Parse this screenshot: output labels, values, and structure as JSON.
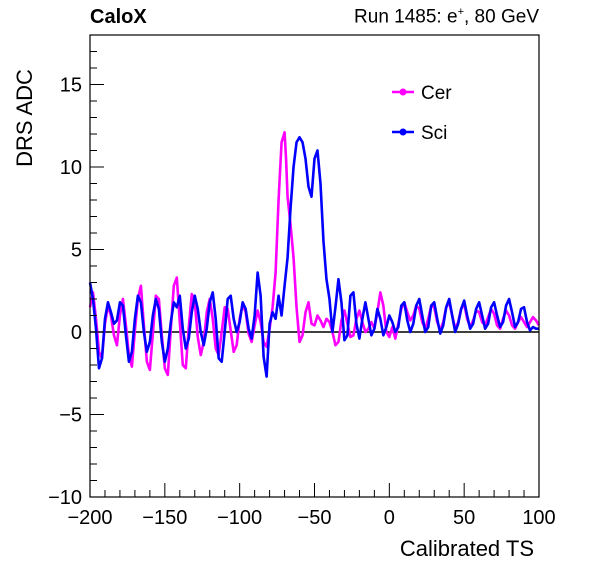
{
  "header": {
    "experiment": "CaloX",
    "run_prefix": "Run 1485: e",
    "run_sup": "+",
    "run_suffix": ", 80 GeV"
  },
  "chart_data": {
    "type": "line",
    "xlabel": "Calibrated TS",
    "ylabel": "DRS ADC",
    "xlim": [
      -200,
      100
    ],
    "ylim": [
      -10,
      18
    ],
    "xticks": [
      -200,
      -150,
      -100,
      -50,
      0,
      50,
      100
    ],
    "yticks": [
      -10,
      -5,
      0,
      5,
      10,
      15
    ],
    "xtick_labels": [
      "−200",
      "−150",
      "−100",
      "−50",
      "0",
      "50",
      "100"
    ],
    "ytick_labels": [
      "−10",
      "−5",
      "0",
      "5",
      "10",
      "15"
    ],
    "zero_line": true,
    "legend_position": "top-right",
    "series": [
      {
        "name": "Cer",
        "color": "#ff00ff",
        "points": [
          [
            -200,
            1.5
          ],
          [
            -198,
            2.4
          ],
          [
            -196,
            0.8
          ],
          [
            -194,
            -1.2
          ],
          [
            -192,
            -1.6
          ],
          [
            -190,
            0.5
          ],
          [
            -188,
            1.6
          ],
          [
            -186,
            1.0
          ],
          [
            -184,
            -0.2
          ],
          [
            -182,
            -0.8
          ],
          [
            -180,
            1.0
          ],
          [
            -178,
            2.0
          ],
          [
            -176,
            0.4
          ],
          [
            -174,
            -1.4
          ],
          [
            -172,
            -2.1
          ],
          [
            -170,
            0.1
          ],
          [
            -168,
            2.0
          ],
          [
            -166,
            2.8
          ],
          [
            -164,
            0.4
          ],
          [
            -162,
            -1.8
          ],
          [
            -160,
            -2.3
          ],
          [
            -158,
            -0.1
          ],
          [
            -156,
            2.2
          ],
          [
            -154,
            2.0
          ],
          [
            -152,
            -0.2
          ],
          [
            -150,
            -2.2
          ],
          [
            -148,
            -2.6
          ],
          [
            -146,
            0.2
          ],
          [
            -144,
            2.8
          ],
          [
            -142,
            3.3
          ],
          [
            -140,
            0.6
          ],
          [
            -138,
            -2.0
          ],
          [
            -136,
            -2.2
          ],
          [
            -134,
            0.3
          ],
          [
            -132,
            2.3
          ],
          [
            -130,
            1.8
          ],
          [
            -128,
            -0.3
          ],
          [
            -126,
            -1.4
          ],
          [
            -124,
            -0.6
          ],
          [
            -122,
            1.2
          ],
          [
            -120,
            2.0
          ],
          [
            -118,
            0.8
          ],
          [
            -116,
            -1.0
          ],
          [
            -114,
            -1.4
          ],
          [
            -112,
            0.0
          ],
          [
            -110,
            1.5
          ],
          [
            -108,
            1.4
          ],
          [
            -106,
            0.1
          ],
          [
            -104,
            -1.2
          ],
          [
            -102,
            -0.8
          ],
          [
            -100,
            0.8
          ],
          [
            -98,
            1.7
          ],
          [
            -96,
            1.2
          ],
          [
            -94,
            -0.1
          ],
          [
            -92,
            -0.6
          ],
          [
            -90,
            0.4
          ],
          [
            -88,
            1.3
          ],
          [
            -86,
            0.6
          ],
          [
            -84,
            -0.6
          ],
          [
            -82,
            -0.9
          ],
          [
            -80,
            0.2
          ],
          [
            -78,
            1.5
          ],
          [
            -76,
            3.6
          ],
          [
            -74,
            8.0
          ],
          [
            -72,
            11.5
          ],
          [
            -70,
            12.1
          ],
          [
            -69,
            10.5
          ],
          [
            -68,
            8.2
          ],
          [
            -66,
            6.5
          ],
          [
            -64,
            4.5
          ],
          [
            -62,
            1.5
          ],
          [
            -60,
            -0.6
          ],
          [
            -58,
            -0.2
          ],
          [
            -56,
            1.2
          ],
          [
            -54,
            1.8
          ],
          [
            -52,
            0.5
          ],
          [
            -50,
            0.4
          ],
          [
            -48,
            1.0
          ],
          [
            -46,
            0.7
          ],
          [
            -44,
            0.3
          ],
          [
            -42,
            0.8
          ],
          [
            -40,
            0.6
          ],
          [
            -38,
            0.0
          ],
          [
            -36,
            -0.8
          ],
          [
            -34,
            -0.6
          ],
          [
            -32,
            0.7
          ],
          [
            -30,
            1.3
          ],
          [
            -28,
            0.5
          ],
          [
            -26,
            -0.3
          ],
          [
            -24,
            -0.2
          ],
          [
            -22,
            0.8
          ],
          [
            -20,
            1.3
          ],
          [
            -18,
            0.6
          ],
          [
            -16,
            0.0
          ],
          [
            -14,
            0.2
          ],
          [
            -12,
            0.6
          ],
          [
            -10,
            0.2
          ],
          [
            -8,
            1.2
          ],
          [
            -6,
            2.4
          ],
          [
            -4,
            1.6
          ],
          [
            -2,
            0.0
          ],
          [
            0,
            -0.3
          ],
          [
            2,
            0.3
          ],
          [
            4,
            -0.4
          ],
          [
            6,
            0.5
          ],
          [
            8,
            1.4
          ],
          [
            10,
            1.8
          ],
          [
            12,
            1.2
          ],
          [
            14,
            0.7
          ],
          [
            16,
            1.0
          ],
          [
            18,
            1.6
          ],
          [
            20,
            1.4
          ],
          [
            22,
            0.6
          ],
          [
            24,
            0.2
          ],
          [
            26,
            0.8
          ],
          [
            28,
            1.6
          ],
          [
            30,
            1.5
          ],
          [
            32,
            0.6
          ],
          [
            34,
            0.1
          ],
          [
            36,
            0.6
          ],
          [
            38,
            1.5
          ],
          [
            40,
            1.8
          ],
          [
            42,
            1.0
          ],
          [
            44,
            0.2
          ],
          [
            46,
            0.6
          ],
          [
            48,
            1.4
          ],
          [
            50,
            1.7
          ],
          [
            52,
            0.8
          ],
          [
            54,
            0.3
          ],
          [
            56,
            0.7
          ],
          [
            58,
            1.3
          ],
          [
            60,
            1.2
          ],
          [
            62,
            0.6
          ],
          [
            64,
            0.4
          ],
          [
            66,
            0.9
          ],
          [
            68,
            1.4
          ],
          [
            70,
            1.1
          ],
          [
            72,
            0.4
          ],
          [
            74,
            0.2
          ],
          [
            76,
            0.8
          ],
          [
            78,
            1.3
          ],
          [
            80,
            1.0
          ],
          [
            82,
            0.4
          ],
          [
            84,
            0.2
          ],
          [
            86,
            0.6
          ],
          [
            88,
            0.9
          ],
          [
            90,
            0.6
          ],
          [
            92,
            0.3
          ],
          [
            94,
            0.6
          ],
          [
            96,
            0.9
          ],
          [
            98,
            0.7
          ],
          [
            100,
            0.4
          ]
        ]
      },
      {
        "name": "Sci",
        "color": "#0000ff",
        "points": [
          [
            -200,
            3.0
          ],
          [
            -198,
            2.0
          ],
          [
            -196,
            0.2
          ],
          [
            -194,
            -2.2
          ],
          [
            -192,
            -1.6
          ],
          [
            -190,
            0.8
          ],
          [
            -188,
            1.8
          ],
          [
            -186,
            1.2
          ],
          [
            -184,
            0.5
          ],
          [
            -182,
            0.7
          ],
          [
            -180,
            1.8
          ],
          [
            -178,
            1.6
          ],
          [
            -176,
            -0.2
          ],
          [
            -174,
            -1.8
          ],
          [
            -172,
            -1.2
          ],
          [
            -170,
            0.8
          ],
          [
            -168,
            2.2
          ],
          [
            -166,
            1.8
          ],
          [
            -164,
            0.0
          ],
          [
            -162,
            -1.2
          ],
          [
            -160,
            -0.6
          ],
          [
            -158,
            1.0
          ],
          [
            -156,
            2.0
          ],
          [
            -154,
            1.4
          ],
          [
            -152,
            -0.6
          ],
          [
            -150,
            -1.8
          ],
          [
            -148,
            -1.0
          ],
          [
            -146,
            0.6
          ],
          [
            -144,
            1.8
          ],
          [
            -142,
            1.5
          ],
          [
            -140,
            2.2
          ],
          [
            -138,
            0.2
          ],
          [
            -136,
            -1.0
          ],
          [
            -134,
            -0.4
          ],
          [
            -132,
            1.2
          ],
          [
            -130,
            2.2
          ],
          [
            -128,
            1.4
          ],
          [
            -126,
            0.0
          ],
          [
            -124,
            -0.8
          ],
          [
            -122,
            0.2
          ],
          [
            -120,
            1.8
          ],
          [
            -118,
            2.4
          ],
          [
            -116,
            0.8
          ],
          [
            -114,
            -1.6
          ],
          [
            -112,
            -1.8
          ],
          [
            -110,
            0.0
          ],
          [
            -108,
            2.0
          ],
          [
            -106,
            2.2
          ],
          [
            -104,
            0.8
          ],
          [
            -102,
            0.0
          ],
          [
            -100,
            0.6
          ],
          [
            -98,
            1.8
          ],
          [
            -96,
            1.4
          ],
          [
            -94,
            0.2
          ],
          [
            -92,
            -0.4
          ],
          [
            -90,
            1.0
          ],
          [
            -88,
            3.6
          ],
          [
            -86,
            2.2
          ],
          [
            -84,
            -1.5
          ],
          [
            -82,
            -2.7
          ],
          [
            -80,
            0.5
          ],
          [
            -78,
            1.2
          ],
          [
            -76,
            0.8
          ],
          [
            -74,
            2.2
          ],
          [
            -72,
            1.0
          ],
          [
            -70,
            2.8
          ],
          [
            -68,
            4.5
          ],
          [
            -66,
            7.5
          ],
          [
            -64,
            10.0
          ],
          [
            -62,
            11.5
          ],
          [
            -60,
            11.8
          ],
          [
            -58,
            11.5
          ],
          [
            -56,
            10.5
          ],
          [
            -54,
            8.8
          ],
          [
            -52,
            8.2
          ],
          [
            -50,
            10.5
          ],
          [
            -48,
            11.0
          ],
          [
            -46,
            9.0
          ],
          [
            -44,
            5.5
          ],
          [
            -42,
            3.2
          ],
          [
            -40,
            2.0
          ],
          [
            -38,
            0.0
          ],
          [
            -36,
            1.5
          ],
          [
            -34,
            3.2
          ],
          [
            -32,
            1.8
          ],
          [
            -30,
            -0.5
          ],
          [
            -28,
            -0.2
          ],
          [
            -26,
            2.2
          ],
          [
            -24,
            2.4
          ],
          [
            -22,
            0.5
          ],
          [
            -20,
            -0.4
          ],
          [
            -18,
            0.8
          ],
          [
            -16,
            1.8
          ],
          [
            -14,
            0.8
          ],
          [
            -12,
            -0.2
          ],
          [
            -10,
            0.2
          ],
          [
            -8,
            1.4
          ],
          [
            -6,
            0.8
          ],
          [
            -4,
            -0.2
          ],
          [
            -2,
            0.3
          ],
          [
            0,
            1.0
          ],
          [
            2,
            0.6
          ],
          [
            4,
            0.0
          ],
          [
            6,
            0.3
          ],
          [
            8,
            1.6
          ],
          [
            10,
            1.8
          ],
          [
            12,
            0.7
          ],
          [
            14,
            0.0
          ],
          [
            16,
            0.5
          ],
          [
            18,
            1.6
          ],
          [
            20,
            2.0
          ],
          [
            22,
            1.0
          ],
          [
            24,
            0.0
          ],
          [
            26,
            0.3
          ],
          [
            28,
            1.6
          ],
          [
            30,
            1.8
          ],
          [
            32,
            0.8
          ],
          [
            34,
            -0.1
          ],
          [
            36,
            0.4
          ],
          [
            38,
            1.5
          ],
          [
            40,
            2.0
          ],
          [
            42,
            1.0
          ],
          [
            44,
            0.0
          ],
          [
            46,
            0.5
          ],
          [
            48,
            1.4
          ],
          [
            50,
            1.9
          ],
          [
            52,
            1.0
          ],
          [
            54,
            0.2
          ],
          [
            56,
            0.5
          ],
          [
            58,
            1.4
          ],
          [
            60,
            1.8
          ],
          [
            62,
            1.0
          ],
          [
            64,
            0.2
          ],
          [
            66,
            0.5
          ],
          [
            68,
            1.5
          ],
          [
            70,
            1.8
          ],
          [
            72,
            1.0
          ],
          [
            74,
            0.3
          ],
          [
            76,
            0.6
          ],
          [
            78,
            1.6
          ],
          [
            80,
            2.0
          ],
          [
            82,
            1.2
          ],
          [
            84,
            0.3
          ],
          [
            86,
            0.6
          ],
          [
            88,
            1.4
          ],
          [
            90,
            1.5
          ],
          [
            92,
            0.6
          ],
          [
            94,
            0.1
          ],
          [
            96,
            0.3
          ],
          [
            98,
            0.2
          ],
          [
            100,
            0.2
          ]
        ]
      }
    ]
  }
}
